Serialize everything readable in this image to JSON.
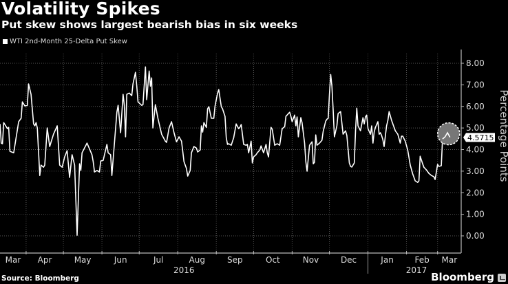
{
  "header": {
    "title": "Volatility Spikes",
    "subtitle": "Put skew shows largest bearish bias in six weeks"
  },
  "footer": {
    "source": "Source: Bloomberg",
    "brand": "Bloomberg"
  },
  "colors": {
    "background": "#000000",
    "line": "#ffffff",
    "grid": "#555555",
    "highlight": "#777777"
  },
  "chart_data": {
    "type": "line",
    "title": "Volatility Spikes",
    "subtitle": "Put skew shows largest bearish bias in six weeks",
    "xlabel": "",
    "ylabel": "Percentage Points",
    "x_unit": "days since 2016-03-11",
    "xlim": [
      0,
      371
    ],
    "ylim": [
      -0.4,
      8.6
    ],
    "grid": true,
    "legend_position": "top-left",
    "y_ticks": [
      "0.00",
      "1.00",
      "2.00",
      "3.00",
      "4.00",
      "5.00",
      "6.00",
      "7.00",
      "8.00"
    ],
    "y_tick_values": [
      0,
      1,
      2,
      3,
      4,
      5,
      6,
      7,
      8
    ],
    "x_ticks": [
      {
        "label": "Mar",
        "day": 0
      },
      {
        "label": "Apr",
        "day": 21
      },
      {
        "label": "May",
        "day": 51
      },
      {
        "label": "Jun",
        "day": 82
      },
      {
        "label": "Jul",
        "day": 112
      },
      {
        "label": "Aug",
        "day": 143
      },
      {
        "label": "Sep",
        "day": 174
      },
      {
        "label": "Oct",
        "day": 204
      },
      {
        "label": "Nov",
        "day": 235
      },
      {
        "label": "Dec",
        "day": 265
      },
      {
        "label": "Jan",
        "day": 296
      },
      {
        "label": "Feb",
        "day": 327
      },
      {
        "label": "Mar",
        "day": 352
      }
    ],
    "month_boundaries": [
      21,
      51,
      82,
      112,
      143,
      174,
      204,
      235,
      265,
      296,
      327,
      352
    ],
    "year_labels": [
      {
        "label": "2016",
        "day": 148
      },
      {
        "label": "2017",
        "day": 335
      }
    ],
    "year_divider_day": 296,
    "annotation": {
      "label": "4.5715",
      "day": 362,
      "value": 4.5715
    },
    "series": [
      {
        "name": "WTI 2nd-Month 25-Delta Put Skew",
        "points": [
          [
            0,
            5.19
          ],
          [
            1,
            4.3
          ],
          [
            2,
            4.27
          ],
          [
            3,
            5.25
          ],
          [
            6,
            4.97
          ],
          [
            7,
            5.03
          ],
          [
            8,
            3.92
          ],
          [
            11,
            3.85
          ],
          [
            15,
            5.29
          ],
          [
            17,
            5.45
          ],
          [
            18,
            6.21
          ],
          [
            20,
            6.02
          ],
          [
            22,
            6.05
          ],
          [
            23,
            7.04
          ],
          [
            25,
            6.56
          ],
          [
            27,
            5.19
          ],
          [
            28,
            5.1
          ],
          [
            29,
            5.25
          ],
          [
            30,
            5.0
          ],
          [
            32,
            2.8
          ],
          [
            33,
            3.28
          ],
          [
            35,
            3.18
          ],
          [
            36,
            3.28
          ],
          [
            38,
            5.0
          ],
          [
            40,
            4.14
          ],
          [
            43,
            4.71
          ],
          [
            46,
            5.1
          ],
          [
            48,
            3.28
          ],
          [
            50,
            3.18
          ],
          [
            52,
            3.66
          ],
          [
            54,
            3.95
          ],
          [
            56,
            2.71
          ],
          [
            58,
            3.76
          ],
          [
            60,
            3.28
          ],
          [
            62,
            0.03
          ],
          [
            64,
            3.34
          ],
          [
            65,
            3.03
          ],
          [
            66,
            3.85
          ],
          [
            70,
            4.3
          ],
          [
            74,
            3.76
          ],
          [
            75,
            3.44
          ],
          [
            76,
            2.96
          ],
          [
            78,
            3.03
          ],
          [
            80,
            2.96
          ],
          [
            81,
            3.47
          ],
          [
            83,
            3.5
          ],
          [
            86,
            4.24
          ],
          [
            87,
            3.85
          ],
          [
            89,
            3.76
          ],
          [
            90,
            2.8
          ],
          [
            94,
            5.73
          ],
          [
            95,
            6.05
          ],
          [
            97,
            4.78
          ],
          [
            99,
            6.56
          ],
          [
            100,
            6.05
          ],
          [
            101,
            4.59
          ],
          [
            102,
            6.56
          ],
          [
            104,
            6.62
          ],
          [
            106,
            6.5
          ],
          [
            107,
            7.04
          ],
          [
            109,
            7.58
          ],
          [
            110,
            6.94
          ],
          [
            111,
            6.21
          ],
          [
            114,
            6.05
          ],
          [
            115,
            6.08
          ],
          [
            117,
            7.83
          ],
          [
            118,
            6.31
          ],
          [
            120,
            7.64
          ],
          [
            121,
            6.94
          ],
          [
            122,
            7.32
          ],
          [
            123,
            5.0
          ],
          [
            125,
            6.08
          ],
          [
            127,
            5.45
          ],
          [
            130,
            4.71
          ],
          [
            133,
            4.39
          ],
          [
            134,
            4.33
          ],
          [
            136,
            5.0
          ],
          [
            138,
            5.29
          ],
          [
            140,
            4.78
          ],
          [
            142,
            4.36
          ],
          [
            144,
            4.59
          ],
          [
            146,
            4.39
          ],
          [
            148,
            3.44
          ],
          [
            150,
            3.12
          ],
          [
            151,
            2.77
          ],
          [
            153,
            3.03
          ],
          [
            154,
            3.85
          ],
          [
            156,
            4.14
          ],
          [
            158,
            4.07
          ],
          [
            159,
            3.89
          ],
          [
            161,
            3.98
          ],
          [
            162,
            5.1
          ],
          [
            163,
            4.81
          ],
          [
            164,
            5.25
          ],
          [
            166,
            5.03
          ],
          [
            167,
            5.89
          ],
          [
            168,
            5.99
          ],
          [
            170,
            5.45
          ],
          [
            172,
            5.45
          ],
          [
            173,
            6.02
          ],
          [
            175,
            6.6
          ],
          [
            176,
            6.78
          ],
          [
            178,
            5.99
          ],
          [
            179,
            5.89
          ],
          [
            181,
            5.54
          ],
          [
            182,
            4.55
          ],
          [
            183,
            4.24
          ],
          [
            184,
            4.27
          ],
          [
            186,
            4.2
          ],
          [
            188,
            4.55
          ],
          [
            190,
            5.19
          ],
          [
            192,
            4.97
          ],
          [
            193,
            5.03
          ],
          [
            194,
            5.16
          ],
          [
            196,
            4.24
          ],
          [
            198,
            4.2
          ],
          [
            199,
            4.24
          ],
          [
            200,
            3.85
          ],
          [
            202,
            4.39
          ],
          [
            203,
            3.38
          ],
          [
            204,
            3.66
          ],
          [
            206,
            3.76
          ],
          [
            207,
            3.85
          ],
          [
            209,
            3.98
          ],
          [
            210,
            4.17
          ],
          [
            212,
            3.85
          ],
          [
            214,
            4.24
          ],
          [
            215,
            3.85
          ],
          [
            216,
            3.66
          ],
          [
            218,
            5.03
          ],
          [
            219,
            4.94
          ],
          [
            221,
            4.2
          ],
          [
            223,
            4.27
          ],
          [
            225,
            4.2
          ],
          [
            227,
            4.97
          ],
          [
            229,
            5.06
          ],
          [
            230,
            5.54
          ],
          [
            233,
            5.73
          ],
          [
            234,
            5.54
          ],
          [
            235,
            5.29
          ],
          [
            237,
            5.6
          ],
          [
            238,
            5.1
          ],
          [
            239,
            5.51
          ],
          [
            240,
            4.59
          ],
          [
            242,
            5.48
          ],
          [
            243,
            5.25
          ],
          [
            245,
            4.3
          ],
          [
            246,
            3.44
          ],
          [
            247,
            3.0
          ],
          [
            249,
            4.2
          ],
          [
            251,
            4.36
          ],
          [
            252,
            3.34
          ],
          [
            253,
            3.41
          ],
          [
            254,
            4.68
          ],
          [
            255,
            4.2
          ],
          [
            257,
            4.3
          ],
          [
            259,
            4.43
          ],
          [
            260,
            4.84
          ],
          [
            262,
            5.32
          ],
          [
            263,
            5.41
          ],
          [
            264,
            5.45
          ],
          [
            265,
            6.56
          ],
          [
            266,
            7.48
          ],
          [
            267,
            6.94
          ],
          [
            268,
            5.83
          ],
          [
            269,
            4.59
          ],
          [
            271,
            5.1
          ],
          [
            272,
            5.67
          ],
          [
            274,
            5.76
          ],
          [
            275,
            5.25
          ],
          [
            276,
            4.71
          ],
          [
            278,
            4.87
          ],
          [
            279,
            4.65
          ],
          [
            281,
            3.38
          ],
          [
            282,
            3.22
          ],
          [
            283,
            3.19
          ],
          [
            285,
            3.38
          ],
          [
            286,
            4.87
          ],
          [
            287,
            5.92
          ],
          [
            288,
            5.1
          ],
          [
            290,
            4.87
          ],
          [
            292,
            5.48
          ],
          [
            293,
            5.19
          ],
          [
            294,
            5.51
          ],
          [
            295,
            5.6
          ],
          [
            296,
            4.97
          ],
          [
            298,
            4.71
          ],
          [
            299,
            5.1
          ],
          [
            300,
            4.3
          ],
          [
            301,
            4.81
          ],
          [
            302,
            5.03
          ],
          [
            304,
            5.29
          ],
          [
            305,
            4.71
          ],
          [
            307,
            4.65
          ],
          [
            306,
            4.78
          ],
          [
            308,
            4.46
          ],
          [
            309,
            4.14
          ],
          [
            311,
            5.1
          ],
          [
            312,
            5.35
          ],
          [
            313,
            5.76
          ],
          [
            315,
            5.35
          ],
          [
            317,
            5.03
          ],
          [
            318,
            4.87
          ],
          [
            320,
            4.71
          ],
          [
            322,
            4.3
          ],
          [
            323,
            4.62
          ],
          [
            324,
            4.62
          ],
          [
            326,
            4.39
          ],
          [
            328,
            3.98
          ],
          [
            330,
            3.28
          ],
          [
            332,
            2.87
          ],
          [
            334,
            2.55
          ],
          [
            336,
            2.48
          ],
          [
            337,
            2.55
          ],
          [
            338,
            3.69
          ],
          [
            340,
            3.34
          ],
          [
            341,
            3.18
          ],
          [
            343,
            3.06
          ],
          [
            345,
            2.9
          ],
          [
            347,
            2.8
          ],
          [
            349,
            2.74
          ],
          [
            350,
            2.61
          ],
          [
            352,
            3.31
          ],
          [
            353,
            3.22
          ],
          [
            355,
            3.25
          ],
          [
            356,
            4.49
          ],
          [
            358,
            4.59
          ],
          [
            360,
            4.78
          ],
          [
            362,
            4.57
          ]
        ]
      }
    ]
  }
}
